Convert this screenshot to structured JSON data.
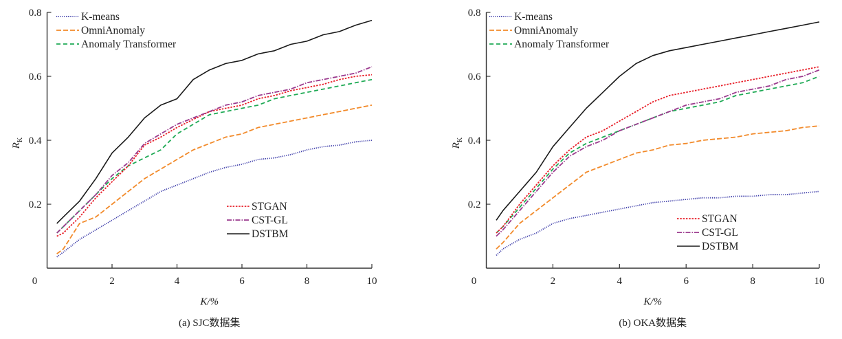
{
  "chart_data": [
    {
      "type": "line",
      "caption": "(a)   SJC数据集",
      "xlabel": "K/%",
      "ylabel": "R",
      "ylabel_sub": "K",
      "xlim": [
        0,
        10
      ],
      "ylim": [
        0,
        0.8
      ],
      "xticks": [
        "0",
        "2",
        "4",
        "6",
        "8",
        "10"
      ],
      "xtick_values": [
        0,
        2,
        4,
        6,
        8,
        10
      ],
      "yticks": [
        "0.2",
        "0.4",
        "0.6",
        "0.8"
      ],
      "ytick_values": [
        0.2,
        0.4,
        0.6,
        0.8
      ],
      "grid": false,
      "legend_placement": [
        "top-left",
        "bottom-right"
      ],
      "x": [
        0.3,
        0.5,
        1,
        1.5,
        2,
        2.5,
        3,
        3.5,
        4,
        4.5,
        5,
        5.5,
        6,
        6.5,
        7,
        7.5,
        8,
        8.5,
        9,
        9.5,
        10
      ],
      "series": [
        {
          "name": "K-means",
          "color": "#3a3aa8",
          "style": "dotted",
          "legend_group": 0,
          "values": [
            0.035,
            0.05,
            0.09,
            0.12,
            0.15,
            0.18,
            0.21,
            0.24,
            0.26,
            0.28,
            0.3,
            0.315,
            0.325,
            0.34,
            0.345,
            0.355,
            0.37,
            0.38,
            0.385,
            0.395,
            0.4
          ]
        },
        {
          "name": "OmniAnomaly",
          "color": "#f28a2a",
          "style": "longdash",
          "legend_group": 0,
          "values": [
            0.045,
            0.06,
            0.14,
            0.16,
            0.2,
            0.24,
            0.28,
            0.31,
            0.34,
            0.37,
            0.39,
            0.41,
            0.42,
            0.44,
            0.45,
            0.46,
            0.47,
            0.48,
            0.49,
            0.5,
            0.51
          ]
        },
        {
          "name": "Anomaly Transformer",
          "color": "#1faa55",
          "style": "dash",
          "legend_group": 0,
          "values": [
            0.11,
            0.13,
            0.18,
            0.23,
            0.28,
            0.32,
            0.345,
            0.37,
            0.42,
            0.45,
            0.48,
            0.49,
            0.5,
            0.51,
            0.53,
            0.54,
            0.55,
            0.56,
            0.57,
            0.58,
            0.59
          ]
        },
        {
          "name": "STGAN",
          "color": "#e8202a",
          "style": "shortdash",
          "legend_group": 1,
          "values": [
            0.1,
            0.11,
            0.16,
            0.22,
            0.27,
            0.32,
            0.385,
            0.41,
            0.44,
            0.465,
            0.49,
            0.5,
            0.51,
            0.53,
            0.54,
            0.555,
            0.565,
            0.575,
            0.59,
            0.6,
            0.605
          ]
        },
        {
          "name": "CST-GL",
          "color": "#9b3a8e",
          "style": "dashdot",
          "legend_group": 1,
          "values": [
            0.11,
            0.13,
            0.18,
            0.23,
            0.29,
            0.33,
            0.39,
            0.42,
            0.45,
            0.47,
            0.49,
            0.51,
            0.52,
            0.54,
            0.55,
            0.56,
            0.58,
            0.59,
            0.6,
            0.61,
            0.63
          ]
        },
        {
          "name": "DSTBM",
          "color": "#1a1a1a",
          "style": "solid",
          "legend_group": 1,
          "values": [
            0.14,
            0.16,
            0.21,
            0.28,
            0.36,
            0.41,
            0.47,
            0.51,
            0.53,
            0.59,
            0.62,
            0.64,
            0.65,
            0.67,
            0.68,
            0.7,
            0.71,
            0.73,
            0.74,
            0.76,
            0.775
          ]
        }
      ]
    },
    {
      "type": "line",
      "caption": "(b)   OKA数据集",
      "xlabel": "K/%",
      "ylabel": "R",
      "ylabel_sub": "K",
      "xlim": [
        0,
        10
      ],
      "ylim": [
        0,
        0.8
      ],
      "xticks": [
        "0",
        "2",
        "4",
        "6",
        "8",
        "10"
      ],
      "xtick_values": [
        0,
        2,
        4,
        6,
        8,
        10
      ],
      "yticks": [
        "0.2",
        "0.4",
        "0.6",
        "0.8"
      ],
      "ytick_values": [
        0.2,
        0.4,
        0.6,
        0.8
      ],
      "grid": false,
      "legend_placement": [
        "top-left",
        "bottom-right"
      ],
      "x": [
        0.3,
        0.5,
        1,
        1.5,
        2,
        2.5,
        3,
        3.5,
        4,
        4.5,
        5,
        5.5,
        6,
        6.5,
        7,
        7.5,
        8,
        8.5,
        9,
        9.5,
        10
      ],
      "series": [
        {
          "name": "K-means",
          "color": "#3a3aa8",
          "style": "dotted",
          "legend_group": 0,
          "values": [
            0.04,
            0.06,
            0.09,
            0.11,
            0.14,
            0.155,
            0.165,
            0.175,
            0.185,
            0.195,
            0.205,
            0.21,
            0.215,
            0.22,
            0.22,
            0.225,
            0.225,
            0.23,
            0.23,
            0.235,
            0.24
          ]
        },
        {
          "name": "OmniAnomaly",
          "color": "#f28a2a",
          "style": "longdash",
          "legend_group": 0,
          "values": [
            0.06,
            0.08,
            0.14,
            0.18,
            0.22,
            0.26,
            0.3,
            0.32,
            0.34,
            0.36,
            0.37,
            0.385,
            0.39,
            0.4,
            0.405,
            0.41,
            0.42,
            0.425,
            0.43,
            0.44,
            0.445
          ]
        },
        {
          "name": "Anomaly Transformer",
          "color": "#1faa55",
          "style": "dash",
          "legend_group": 0,
          "values": [
            0.11,
            0.13,
            0.19,
            0.25,
            0.31,
            0.36,
            0.39,
            0.41,
            0.43,
            0.45,
            0.47,
            0.49,
            0.5,
            0.51,
            0.52,
            0.54,
            0.55,
            0.56,
            0.57,
            0.58,
            0.6
          ]
        },
        {
          "name": "STGAN",
          "color": "#e8202a",
          "style": "shortdash",
          "legend_group": 1,
          "values": [
            0.11,
            0.13,
            0.2,
            0.26,
            0.32,
            0.37,
            0.41,
            0.43,
            0.46,
            0.49,
            0.52,
            0.54,
            0.55,
            0.56,
            0.57,
            0.58,
            0.59,
            0.6,
            0.61,
            0.62,
            0.63
          ]
        },
        {
          "name": "CST-GL",
          "color": "#9b3a8e",
          "style": "dashdot",
          "legend_group": 1,
          "values": [
            0.1,
            0.12,
            0.18,
            0.24,
            0.3,
            0.35,
            0.38,
            0.4,
            0.43,
            0.45,
            0.47,
            0.49,
            0.51,
            0.52,
            0.53,
            0.55,
            0.56,
            0.57,
            0.59,
            0.6,
            0.62
          ]
        },
        {
          "name": "DSTBM",
          "color": "#1a1a1a",
          "style": "solid",
          "legend_group": 1,
          "values": [
            0.15,
            0.18,
            0.24,
            0.3,
            0.38,
            0.44,
            0.5,
            0.55,
            0.6,
            0.64,
            0.665,
            0.68,
            0.69,
            0.7,
            0.71,
            0.72,
            0.73,
            0.74,
            0.75,
            0.76,
            0.77
          ]
        }
      ]
    }
  ]
}
